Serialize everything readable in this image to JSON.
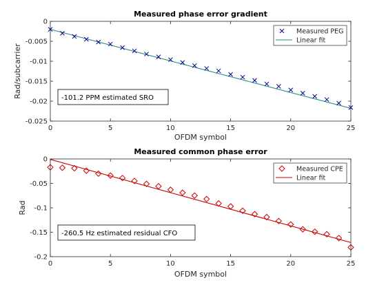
{
  "chart_data": [
    {
      "type": "scatter",
      "title": "Measured phase error gradient",
      "xlabel": "OFDM symbol",
      "ylabel": "Rad/subcarrier",
      "xlim": [
        0,
        25
      ],
      "ylim": [
        -0.025,
        0
      ],
      "xticks": [
        0,
        5,
        10,
        15,
        20,
        25
      ],
      "xtick_labels": [
        "0",
        "5",
        "10",
        "15",
        "20",
        "25"
      ],
      "yticks": [
        0,
        -0.005,
        -0.01,
        -0.015,
        -0.02,
        -0.025
      ],
      "ytick_labels": [
        "0",
        "-0.005",
        "-0.01",
        "-0.015",
        "-0.02",
        "-0.025"
      ],
      "legend_position": "top-right",
      "series": [
        {
          "name": "Measured PEG",
          "kind": "markers",
          "marker": "x",
          "color": "#00008b",
          "x": [
            0,
            1,
            2,
            3,
            4,
            5,
            6,
            7,
            8,
            9,
            10,
            11,
            12,
            13,
            14,
            15,
            16,
            17,
            18,
            19,
            20,
            21,
            22,
            23,
            24,
            25
          ],
          "y": [
            -0.002,
            -0.003,
            -0.0038,
            -0.0045,
            -0.0052,
            -0.0057,
            -0.0066,
            -0.0074,
            -0.0082,
            -0.0089,
            -0.0096,
            -0.0103,
            -0.0111,
            -0.0118,
            -0.0124,
            -0.0133,
            -0.014,
            -0.0148,
            -0.0157,
            -0.0163,
            -0.0172,
            -0.018,
            -0.0188,
            -0.0196,
            -0.0205,
            -0.0216
          ]
        },
        {
          "name": "Linear fit",
          "kind": "line",
          "color": "#2a8a8a",
          "x": [
            0,
            25
          ],
          "y": [
            -0.002,
            -0.0218
          ]
        }
      ],
      "annotation": "-101.2 PPM estimated SRO"
    },
    {
      "type": "scatter",
      "title": "Measured common phase error",
      "xlabel": "OFDM symbol",
      "ylabel": "Rad",
      "xlim": [
        0,
        25
      ],
      "ylim": [
        -0.2,
        0
      ],
      "xticks": [
        0,
        5,
        10,
        15,
        20,
        25
      ],
      "xtick_labels": [
        "0",
        "5",
        "10",
        "15",
        "20",
        "25"
      ],
      "yticks": [
        0,
        -0.05,
        -0.1,
        -0.15,
        -0.2
      ],
      "ytick_labels": [
        "0",
        "-0.05",
        "-0.1",
        "-0.15",
        "-0.2"
      ],
      "legend_position": "top-right",
      "series": [
        {
          "name": "Measured CPE",
          "kind": "markers",
          "marker": "diamond",
          "color": "#cc0000",
          "x": [
            0,
            1,
            2,
            3,
            4,
            5,
            6,
            7,
            8,
            9,
            10,
            11,
            12,
            13,
            14,
            15,
            16,
            17,
            18,
            19,
            20,
            21,
            22,
            23,
            24,
            25
          ],
          "y": [
            -0.017,
            -0.018,
            -0.019,
            -0.024,
            -0.03,
            -0.034,
            -0.039,
            -0.045,
            -0.051,
            -0.056,
            -0.063,
            -0.069,
            -0.075,
            -0.082,
            -0.091,
            -0.097,
            -0.106,
            -0.113,
            -0.119,
            -0.127,
            -0.134,
            -0.144,
            -0.149,
            -0.154,
            -0.162,
            -0.181
          ]
        },
        {
          "name": "Linear fit",
          "kind": "line",
          "color": "#cc0000",
          "x": [
            0,
            25
          ],
          "y": [
            -0.001,
            -0.171
          ]
        }
      ],
      "annotation": "-260.5 Hz estimated residual CFO"
    }
  ]
}
